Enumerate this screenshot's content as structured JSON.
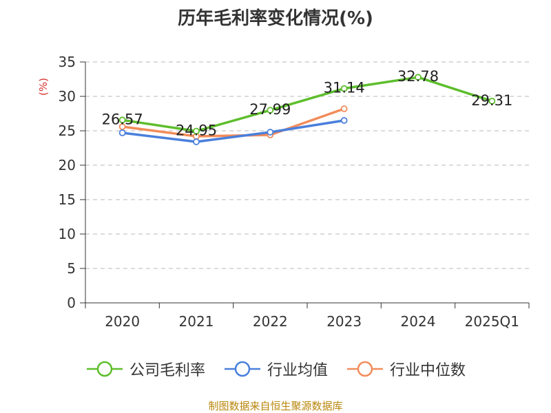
{
  "chart_data": {
    "type": "line",
    "title": "历年毛利率变化情况(%)",
    "ylabel": "(%)",
    "categories": [
      "2020",
      "2021",
      "2022",
      "2023",
      "2024",
      "2025Q1"
    ],
    "ylim": [
      0,
      35
    ],
    "yticks": [
      0,
      5,
      10,
      15,
      20,
      25,
      30,
      35
    ],
    "grid": true,
    "legend_position": "bottom",
    "series": [
      {
        "name": "公司毛利率",
        "color": "#5dbe2c",
        "values": [
          26.57,
          24.95,
          27.99,
          31.14,
          32.78,
          29.31
        ],
        "labels": [
          "26.57",
          "24.95",
          "27.99",
          "31.14",
          "32.78",
          "29.31"
        ]
      },
      {
        "name": "行业均值",
        "color": "#4a7fdc",
        "values": [
          24.7,
          23.4,
          24.8,
          26.5,
          null,
          null
        ]
      },
      {
        "name": "行业中位数",
        "color": "#f28c5a",
        "values": [
          25.6,
          24.2,
          24.4,
          28.2,
          null,
          null
        ]
      }
    ]
  },
  "source": "制图数据来自恒生聚源数据库"
}
